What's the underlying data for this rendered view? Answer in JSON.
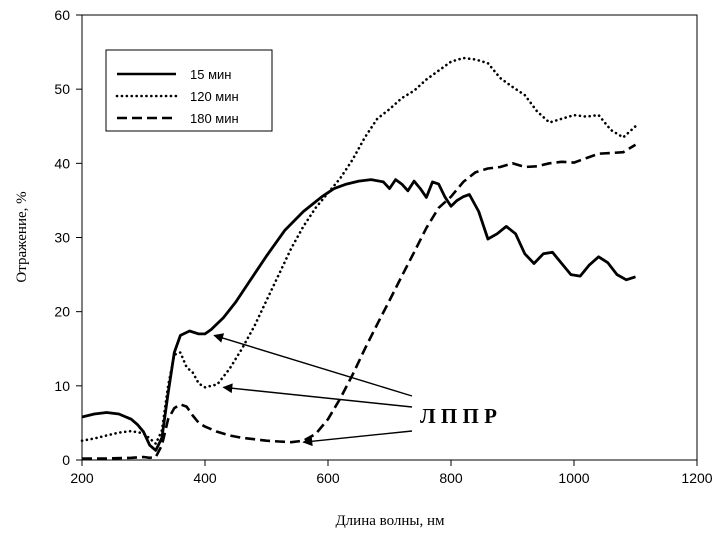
{
  "chart_data": {
    "type": "line",
    "xlabel": "Длина волны, нм",
    "ylabel": "Отражение, %",
    "xlim": [
      200,
      1200
    ],
    "ylim": [
      0,
      60
    ],
    "xticks": [
      200,
      400,
      600,
      800,
      1000,
      1200
    ],
    "yticks": [
      0,
      10,
      20,
      30,
      40,
      50,
      60
    ],
    "grid": false,
    "legend": "top-left",
    "series": [
      {
        "name": "15 мин",
        "style": "solid",
        "x": [
          200,
          220,
          240,
          260,
          280,
          290,
          300,
          310,
          320,
          330,
          340,
          350,
          360,
          375,
          390,
          400,
          410,
          430,
          450,
          470,
          500,
          530,
          560,
          590,
          610,
          630,
          650,
          670,
          690,
          700,
          710,
          720,
          730,
          740,
          750,
          760,
          770,
          780,
          790,
          800,
          810,
          820,
          830,
          845,
          860,
          875,
          890,
          905,
          920,
          935,
          950,
          965,
          980,
          995,
          1010,
          1025,
          1040,
          1055,
          1070,
          1085,
          1100
        ],
        "values": [
          5.8,
          6.2,
          6.4,
          6.2,
          5.5,
          4.8,
          3.8,
          2.0,
          1.3,
          3.0,
          9.0,
          14.5,
          16.8,
          17.4,
          17.0,
          17.0,
          17.6,
          19.2,
          21.3,
          23.8,
          27.5,
          31.0,
          33.5,
          35.5,
          36.6,
          37.2,
          37.6,
          37.8,
          37.5,
          36.6,
          37.8,
          37.2,
          36.3,
          37.6,
          36.6,
          35.4,
          37.5,
          37.2,
          35.5,
          34.2,
          35.0,
          35.5,
          35.8,
          33.5,
          29.8,
          30.5,
          31.5,
          30.5,
          27.8,
          26.5,
          27.8,
          28.0,
          26.5,
          25.0,
          24.8,
          26.3,
          27.4,
          26.6,
          25.0,
          24.3,
          24.7
        ]
      },
      {
        "name": "120 мин",
        "style": "dotted",
        "x": [
          200,
          220,
          240,
          260,
          280,
          300,
          310,
          320,
          330,
          340,
          350,
          360,
          370,
          380,
          390,
          400,
          420,
          440,
          460,
          480,
          500,
          520,
          540,
          560,
          580,
          600,
          620,
          640,
          660,
          680,
          700,
          720,
          740,
          760,
          780,
          800,
          820,
          840,
          860,
          880,
          900,
          920,
          940,
          960,
          980,
          1000,
          1020,
          1040,
          1060,
          1080,
          1100
        ],
        "values": [
          2.6,
          2.9,
          3.3,
          3.7,
          3.9,
          3.6,
          2.9,
          2.2,
          4.0,
          10.0,
          14.2,
          14.5,
          12.5,
          11.8,
          10.3,
          9.8,
          10.2,
          12.3,
          15.0,
          18.0,
          21.5,
          25.0,
          28.5,
          31.5,
          34.0,
          36.0,
          38.0,
          40.5,
          43.5,
          46.0,
          47.3,
          48.8,
          49.8,
          51.3,
          52.5,
          53.7,
          54.2,
          54.0,
          53.5,
          51.5,
          50.3,
          49.2,
          47.0,
          45.5,
          46.0,
          46.5,
          46.3,
          46.5,
          44.5,
          43.5,
          45.0
        ]
      },
      {
        "name": "180 мин",
        "style": "dashed",
        "x": [
          200,
          240,
          280,
          300,
          310,
          320,
          330,
          340,
          350,
          360,
          370,
          380,
          390,
          400,
          420,
          440,
          460,
          480,
          500,
          520,
          540,
          560,
          580,
          600,
          620,
          640,
          660,
          680,
          700,
          720,
          740,
          760,
          780,
          800,
          820,
          840,
          860,
          880,
          900,
          920,
          940,
          960,
          980,
          1000,
          1020,
          1040,
          1060,
          1080,
          1100
        ],
        "values": [
          0.2,
          0.2,
          0.3,
          0.4,
          0.3,
          0.4,
          2.0,
          5.5,
          7.0,
          7.5,
          7.2,
          6.0,
          5.0,
          4.5,
          3.8,
          3.3,
          3.0,
          2.8,
          2.6,
          2.5,
          2.4,
          2.6,
          3.5,
          5.5,
          8.3,
          11.5,
          15.0,
          18.3,
          21.5,
          24.8,
          28.0,
          31.3,
          34.0,
          35.5,
          37.5,
          38.8,
          39.3,
          39.5,
          40.0,
          39.5,
          39.6,
          40.0,
          40.2,
          40.1,
          40.7,
          41.3,
          41.4,
          41.5,
          42.5
        ]
      }
    ],
    "annotation": {
      "text": "Л П П Р",
      "arrow_targets": [
        {
          "x": 415,
          "y": 16.8
        },
        {
          "x": 430,
          "y": 9.8
        },
        {
          "x": 560,
          "y": 2.4
        }
      ]
    }
  }
}
